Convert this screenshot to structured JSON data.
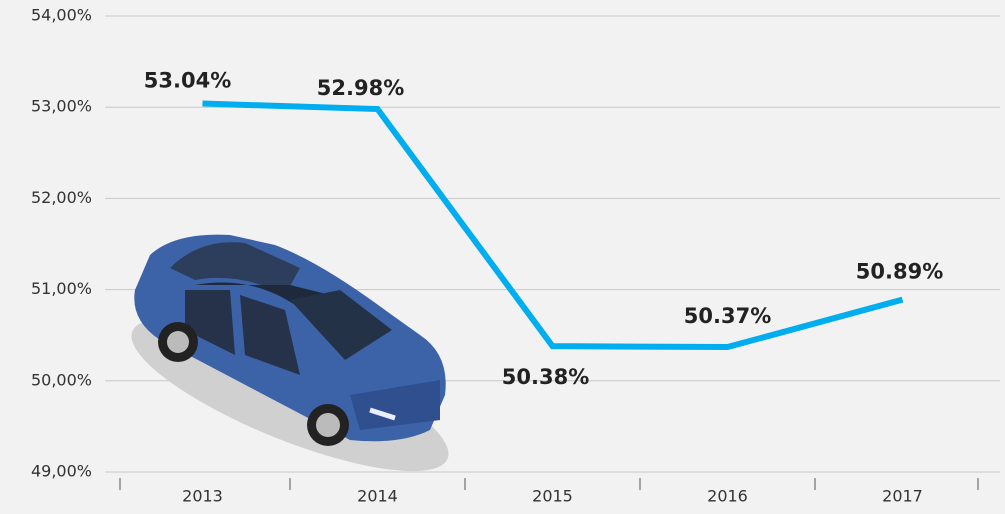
{
  "chart_data": {
    "type": "line",
    "categories": [
      "2013",
      "2014",
      "2015",
      "2016",
      "2017"
    ],
    "series": [
      {
        "color": "#00aeef",
        "values": [
          53.04,
          52.98,
          50.38,
          50.37,
          50.89
        ],
        "value_labels": [
          "53.04%",
          "52.98%",
          "50.38%",
          "50.37%",
          "50.89%"
        ]
      }
    ],
    "ylim": [
      49,
      54
    ],
    "yticks": [
      {
        "value": 49,
        "label": "49,00%"
      },
      {
        "value": 50,
        "label": "50,00%"
      },
      {
        "value": 51,
        "label": "51,00%"
      },
      {
        "value": 52,
        "label": "52,00%"
      },
      {
        "value": 53,
        "label": "53,00%"
      },
      {
        "value": 54,
        "label": "54,00%"
      }
    ],
    "grid": true
  }
}
